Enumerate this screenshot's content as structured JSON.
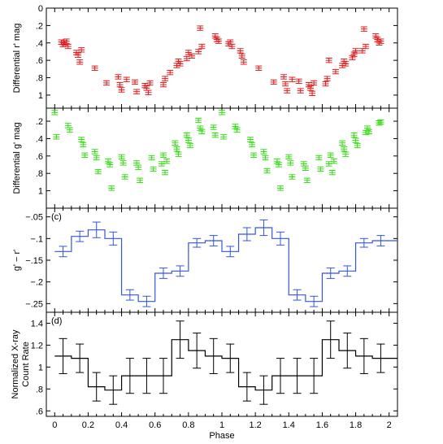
{
  "chart_data": {
    "type": "multi-panel",
    "x_axis": {
      "label": "Phase",
      "range": [
        -0.05,
        2.05
      ],
      "ticks": [
        0,
        0.2,
        0.4,
        0.6,
        0.8,
        1,
        1.2,
        1.4,
        1.6,
        1.8,
        2
      ]
    },
    "panels": [
      {
        "id": "r",
        "type": "scatter",
        "panel_label": "",
        "ylabel": "Differential r' mag",
        "ylim": [
          1.15,
          0
        ],
        "yticks": [
          0,
          0.2,
          0.4,
          0.6,
          0.8,
          1
        ],
        "color": "#e31a1c",
        "yerr": 0.025,
        "points": [
          [
            0.04,
            0.39
          ],
          [
            0.05,
            0.42
          ],
          [
            0.06,
            0.4
          ],
          [
            0.07,
            0.38
          ],
          [
            0.08,
            0.44
          ],
          [
            0.13,
            0.51
          ],
          [
            0.14,
            0.54
          ],
          [
            0.15,
            0.62
          ],
          [
            0.16,
            0.48
          ],
          [
            0.24,
            0.69
          ],
          [
            0.31,
            0.86
          ],
          [
            0.38,
            0.79
          ],
          [
            0.39,
            0.88
          ],
          [
            0.4,
            0.94
          ],
          [
            0.43,
            0.82
          ],
          [
            0.48,
            0.85
          ],
          [
            0.49,
            0.96
          ],
          [
            0.54,
            0.89
          ],
          [
            0.55,
            0.92
          ],
          [
            0.56,
            0.97
          ],
          [
            0.57,
            0.86
          ],
          [
            0.65,
            0.88
          ],
          [
            0.66,
            0.81
          ],
          [
            0.69,
            0.74
          ],
          [
            0.73,
            0.66
          ],
          [
            0.74,
            0.61
          ],
          [
            0.75,
            0.64
          ],
          [
            0.79,
            0.58
          ],
          [
            0.8,
            0.51
          ],
          [
            0.82,
            0.55
          ],
          [
            0.86,
            0.5
          ],
          [
            0.87,
            0.23
          ],
          [
            0.88,
            0.44
          ],
          [
            0.96,
            0.32
          ],
          [
            0.97,
            0.36
          ],
          [
            0.98,
            0.38
          ],
          [
            1.04,
            0.41
          ],
          [
            1.05,
            0.39
          ],
          [
            1.06,
            0.44
          ],
          [
            1.11,
            0.49
          ],
          [
            1.12,
            0.55
          ],
          [
            1.13,
            0.62
          ],
          [
            1.22,
            0.69
          ],
          [
            1.31,
            0.85
          ],
          [
            1.37,
            0.79
          ],
          [
            1.38,
            0.87
          ],
          [
            1.39,
            0.95
          ],
          [
            1.42,
            0.82
          ],
          [
            1.46,
            0.84
          ],
          [
            1.47,
            0.95
          ],
          [
            1.52,
            0.88
          ],
          [
            1.53,
            0.92
          ],
          [
            1.54,
            0.98
          ],
          [
            1.55,
            0.86
          ],
          [
            1.62,
            0.87
          ],
          [
            1.63,
            0.81
          ],
          [
            1.64,
            0.6
          ],
          [
            1.68,
            0.73
          ],
          [
            1.72,
            0.66
          ],
          [
            1.73,
            0.61
          ],
          [
            1.74,
            0.64
          ],
          [
            1.78,
            0.57
          ],
          [
            1.79,
            0.53
          ],
          [
            1.8,
            0.49
          ],
          [
            1.84,
            0.49
          ],
          [
            1.85,
            0.24
          ],
          [
            1.86,
            0.44
          ],
          [
            1.92,
            0.32
          ],
          [
            1.93,
            0.36
          ],
          [
            1.94,
            0.4
          ],
          [
            1.95,
            0.38
          ]
        ]
      },
      {
        "id": "g",
        "type": "scatter",
        "panel_label": "",
        "ylabel": "Differential g' mag",
        "ylim": [
          1.2,
          0.05
        ],
        "yticks": [
          0.2,
          0.4,
          0.6,
          0.8,
          1
        ],
        "color": "#33dd11",
        "yerr": 0.025,
        "points": [
          [
            0.0,
            0.1
          ],
          [
            0.01,
            0.38
          ],
          [
            0.08,
            0.25
          ],
          [
            0.09,
            0.3
          ],
          [
            0.16,
            0.41
          ],
          [
            0.17,
            0.47
          ],
          [
            0.18,
            0.59
          ],
          [
            0.24,
            0.55
          ],
          [
            0.25,
            0.62
          ],
          [
            0.26,
            0.78
          ],
          [
            0.32,
            0.66
          ],
          [
            0.33,
            0.7
          ],
          [
            0.34,
            0.97
          ],
          [
            0.4,
            0.61
          ],
          [
            0.41,
            0.68
          ],
          [
            0.42,
            0.84
          ],
          [
            0.49,
            0.68
          ],
          [
            0.5,
            0.73
          ],
          [
            0.51,
            0.88
          ],
          [
            0.58,
            0.62
          ],
          [
            0.59,
            0.75
          ],
          [
            0.64,
            0.69
          ],
          [
            0.65,
            0.59
          ],
          [
            0.66,
            0.79
          ],
          [
            0.67,
            0.66
          ],
          [
            0.72,
            0.45
          ],
          [
            0.73,
            0.52
          ],
          [
            0.74,
            0.58
          ],
          [
            0.79,
            0.36
          ],
          [
            0.8,
            0.42
          ],
          [
            0.81,
            0.48
          ],
          [
            0.86,
            0.19
          ],
          [
            0.87,
            0.28
          ],
          [
            0.88,
            0.32
          ],
          [
            0.95,
            0.27
          ],
          [
            0.96,
            0.36
          ],
          [
            1.0,
            0.1
          ],
          [
            1.01,
            0.38
          ],
          [
            1.08,
            0.26
          ],
          [
            1.09,
            0.3
          ],
          [
            1.17,
            0.41
          ],
          [
            1.18,
            0.47
          ],
          [
            1.19,
            0.59
          ],
          [
            1.25,
            0.55
          ],
          [
            1.26,
            0.62
          ],
          [
            1.27,
            0.77
          ],
          [
            1.33,
            0.66
          ],
          [
            1.34,
            0.7
          ],
          [
            1.35,
            0.97
          ],
          [
            1.4,
            0.61
          ],
          [
            1.41,
            0.68
          ],
          [
            1.42,
            0.84
          ],
          [
            1.49,
            0.69
          ],
          [
            1.5,
            0.74
          ],
          [
            1.51,
            0.88
          ],
          [
            1.58,
            0.62
          ],
          [
            1.59,
            0.75
          ],
          [
            1.64,
            0.69
          ],
          [
            1.65,
            0.59
          ],
          [
            1.66,
            0.79
          ],
          [
            1.67,
            0.66
          ],
          [
            1.72,
            0.45
          ],
          [
            1.73,
            0.52
          ],
          [
            1.74,
            0.58
          ],
          [
            1.79,
            0.36
          ],
          [
            1.8,
            0.42
          ],
          [
            1.81,
            0.48
          ],
          [
            1.86,
            0.33
          ],
          [
            1.87,
            0.28
          ],
          [
            1.88,
            0.32
          ],
          [
            1.94,
            0.22
          ],
          [
            1.95,
            0.21
          ]
        ]
      },
      {
        "id": "c",
        "type": "step",
        "panel_label": "(c)",
        "ylabel": "g' − r'",
        "ylim": [
          -0.27,
          -0.03
        ],
        "yticks": [
          -0.05,
          -0.1,
          -0.15,
          -0.2,
          -0.25
        ],
        "color": "#3355dd",
        "bin_width": 0.1,
        "x": [
          0.05,
          0.15,
          0.25,
          0.35,
          0.45,
          0.55,
          0.65,
          0.75,
          0.85,
          0.95,
          1.05,
          1.15,
          1.25,
          1.35,
          1.45,
          1.55,
          1.65,
          1.75,
          1.85,
          1.95
        ],
        "y": [
          -0.13,
          -0.095,
          -0.08,
          -0.1,
          -0.23,
          -0.245,
          -0.18,
          -0.175,
          -0.11,
          -0.105,
          -0.13,
          -0.09,
          -0.075,
          -0.1,
          -0.23,
          -0.245,
          -0.18,
          -0.175,
          -0.11,
          -0.105
        ],
        "yerr": [
          0.012,
          0.012,
          0.018,
          0.015,
          0.012,
          0.012,
          0.012,
          0.012,
          0.01,
          0.012,
          0.012,
          0.015,
          0.018,
          0.015,
          0.012,
          0.012,
          0.012,
          0.012,
          0.01,
          0.012
        ]
      },
      {
        "id": "d",
        "type": "step",
        "panel_label": "(d)",
        "ylabel": "Normalized X-ray",
        "ylabel2": "Count Rate",
        "ylim": [
          0.55,
          1.5
        ],
        "yticks": [
          0.6,
          0.8,
          1,
          1.2,
          1.4
        ],
        "color": "#000000",
        "bin_width": 0.1,
        "x": [
          0.05,
          0.15,
          0.25,
          0.35,
          0.45,
          0.55,
          0.65,
          0.75,
          0.85,
          0.95,
          1.05,
          1.15,
          1.25,
          1.35,
          1.45,
          1.55,
          1.65,
          1.75,
          1.85,
          1.95
        ],
        "y": [
          1.1,
          1.08,
          0.82,
          0.79,
          0.92,
          0.92,
          0.92,
          1.25,
          1.15,
          1.1,
          1.08,
          0.82,
          0.79,
          0.92,
          0.92,
          0.92,
          1.25,
          1.15,
          1.1,
          1.08
        ],
        "yerr": [
          0.16,
          0.13,
          0.13,
          0.13,
          0.16,
          0.16,
          0.16,
          0.17,
          0.16,
          0.16,
          0.13,
          0.13,
          0.13,
          0.16,
          0.16,
          0.16,
          0.17,
          0.16,
          0.16,
          0.13
        ]
      }
    ]
  }
}
